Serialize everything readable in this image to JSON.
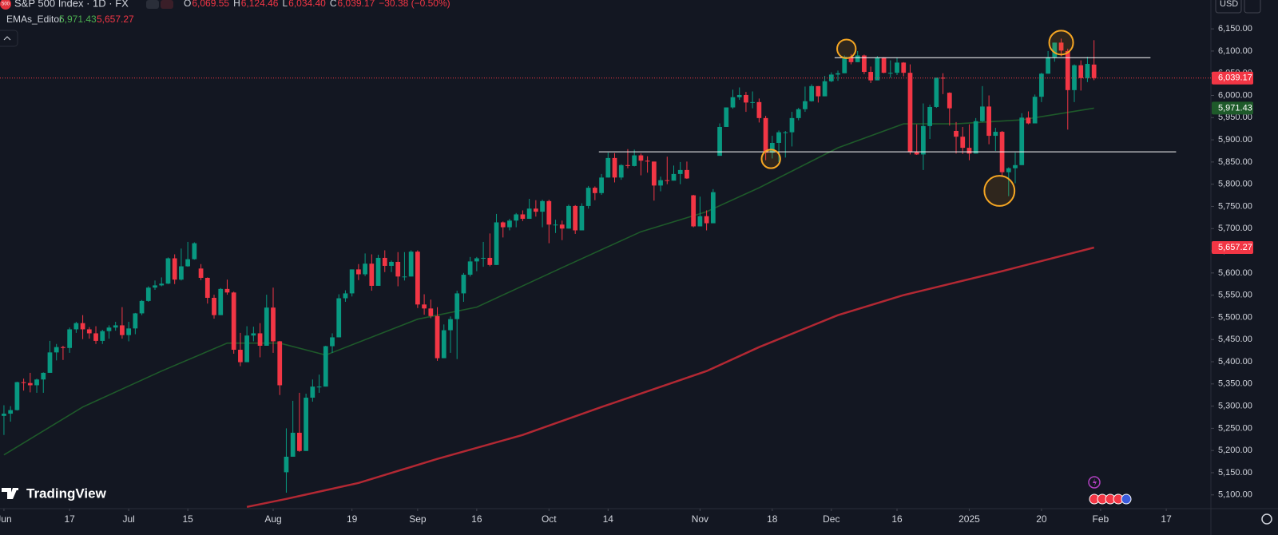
{
  "header": {
    "title": "S&P 500 Index · 1D · FX",
    "logo": "500",
    "ohlc": [
      {
        "key": "O",
        "value": "6,069.55"
      },
      {
        "key": "H",
        "value": "6,124.46"
      },
      {
        "key": "L",
        "value": "6,034.40"
      },
      {
        "key": "C",
        "value": "6,039.17"
      }
    ],
    "change": "−30.38 (−0.50%)",
    "indicator": {
      "name": "EMAs_Editor",
      "values": [
        "5,971.43",
        "5,657.27"
      ]
    },
    "currency": "USD",
    "branding": "TradingView"
  },
  "chart_data": {
    "type": "candlestick",
    "up_color": "#089981",
    "down_color": "#f23645",
    "grid": false,
    "xlim": [
      -0.6,
      183.8
    ],
    "ylim": [
      5069,
      6215
    ],
    "xticks": [
      {
        "value": 0,
        "label": "Jun"
      },
      {
        "value": 10,
        "label": "17"
      },
      {
        "value": 19,
        "label": "Jul"
      },
      {
        "value": 28,
        "label": "15"
      },
      {
        "value": 41,
        "label": "Aug"
      },
      {
        "value": 53,
        "label": "19"
      },
      {
        "value": 63,
        "label": "Sep"
      },
      {
        "value": 72,
        "label": "16"
      },
      {
        "value": 83,
        "label": "Oct"
      },
      {
        "value": 92,
        "label": "14"
      },
      {
        "value": 106,
        "label": "Nov"
      },
      {
        "value": 117,
        "label": "18"
      },
      {
        "value": 126,
        "label": "Dec"
      },
      {
        "value": 136,
        "label": "16"
      },
      {
        "value": 147,
        "label": "2025"
      },
      {
        "value": 158,
        "label": "20"
      },
      {
        "value": 167,
        "label": "Feb"
      },
      {
        "value": 177,
        "label": "17"
      }
    ],
    "yticks": [
      {
        "value": 6150,
        "label": "6,150.00"
      },
      {
        "value": 6100,
        "label": "6,100.00"
      },
      {
        "value": 6050,
        "label": "6,050.00"
      },
      {
        "value": 6000,
        "label": "6,000.00"
      },
      {
        "value": 5950,
        "label": "5,950.00"
      },
      {
        "value": 5900,
        "label": "5,900.00"
      },
      {
        "value": 5850,
        "label": "5,850.00"
      },
      {
        "value": 5800,
        "label": "5,800.00"
      },
      {
        "value": 5750,
        "label": "5,750.00"
      },
      {
        "value": 5700,
        "label": "5,700.00"
      },
      {
        "value": 5650,
        "label": "5,650.00"
      },
      {
        "value": 5600,
        "label": "5,600.00"
      },
      {
        "value": 5550,
        "label": "5,550.00"
      },
      {
        "value": 5500,
        "label": "5,500.00"
      },
      {
        "value": 5450,
        "label": "5,450.00"
      },
      {
        "value": 5400,
        "label": "5,400.00"
      },
      {
        "value": 5350,
        "label": "5,350.00"
      },
      {
        "value": 5300,
        "label": "5,300.00"
      },
      {
        "value": 5250,
        "label": "5,250.00"
      },
      {
        "value": 5200,
        "label": "5,200.00"
      },
      {
        "value": 5150,
        "label": "5,150.00"
      },
      {
        "value": 5100,
        "label": "5,100.00"
      }
    ],
    "candles": [
      [
        5278,
        5302,
        5235,
        5283
      ],
      [
        5283,
        5300,
        5265,
        5291
      ],
      [
        5291,
        5355,
        5290,
        5354
      ],
      [
        5354,
        5362,
        5335,
        5352
      ],
      [
        5352,
        5375,
        5331,
        5347
      ],
      [
        5347,
        5362,
        5330,
        5360
      ],
      [
        5360,
        5376,
        5330,
        5375
      ],
      [
        5375,
        5447,
        5375,
        5421
      ],
      [
        5421,
        5440,
        5403,
        5433
      ],
      [
        5433,
        5436,
        5404,
        5431
      ],
      [
        5431,
        5477,
        5420,
        5473
      ],
      [
        5473,
        5490,
        5465,
        5487
      ],
      [
        5487,
        5505,
        5451,
        5473
      ],
      [
        5473,
        5478,
        5452,
        5464
      ],
      [
        5464,
        5480,
        5440,
        5447
      ],
      [
        5447,
        5472,
        5440,
        5469
      ],
      [
        5469,
        5482,
        5452,
        5477
      ],
      [
        5477,
        5490,
        5470,
        5482
      ],
      [
        5482,
        5523,
        5452,
        5460
      ],
      [
        5460,
        5490,
        5446,
        5475
      ],
      [
        5475,
        5510,
        5462,
        5509
      ],
      [
        5509,
        5539,
        5505,
        5537
      ],
      [
        5537,
        5570,
        5535,
        5567
      ],
      [
        5567,
        5583,
        5562,
        5572
      ],
      [
        5572,
        5590,
        5570,
        5576
      ],
      [
        5576,
        5635,
        5575,
        5633
      ],
      [
        5633,
        5642,
        5575,
        5585
      ],
      [
        5585,
        5655,
        5583,
        5615
      ],
      [
        5615,
        5670,
        5614,
        5631
      ],
      [
        5631,
        5669,
        5630,
        5667
      ],
      [
        5610,
        5620,
        5584,
        5589
      ],
      [
        5589,
        5590,
        5531,
        5544
      ],
      [
        5544,
        5551,
        5497,
        5505
      ],
      [
        5505,
        5566,
        5505,
        5564
      ],
      [
        5564,
        5585,
        5551,
        5556
      ],
      [
        5556,
        5558,
        5418,
        5427
      ],
      [
        5427,
        5465,
        5390,
        5399
      ],
      [
        5399,
        5480,
        5399,
        5459
      ],
      [
        5459,
        5479,
        5446,
        5464
      ],
      [
        5464,
        5487,
        5410,
        5436
      ],
      [
        5436,
        5551,
        5436,
        5522
      ],
      [
        5522,
        5567,
        5420,
        5446
      ],
      [
        5446,
        5447,
        5325,
        5347
      ],
      [
        5151,
        5250,
        5105,
        5186
      ],
      [
        5186,
        5312,
        5186,
        5240
      ],
      [
        5240,
        5330,
        5197,
        5199
      ],
      [
        5199,
        5328,
        5199,
        5319
      ],
      [
        5319,
        5360,
        5310,
        5344
      ],
      [
        5344,
        5371,
        5330,
        5344
      ],
      [
        5344,
        5436,
        5344,
        5435
      ],
      [
        5435,
        5464,
        5420,
        5455
      ],
      [
        5455,
        5552,
        5455,
        5543
      ],
      [
        5543,
        5561,
        5535,
        5554
      ],
      [
        5554,
        5608,
        5547,
        5608
      ],
      [
        5608,
        5620,
        5584,
        5597
      ],
      [
        5597,
        5644,
        5593,
        5621
      ],
      [
        5621,
        5642,
        5560,
        5571
      ],
      [
        5571,
        5641,
        5571,
        5634
      ],
      [
        5634,
        5651,
        5602,
        5616
      ],
      [
        5616,
        5628,
        5602,
        5625
      ],
      [
        5625,
        5647,
        5570,
        5592
      ],
      [
        5592,
        5647,
        5583,
        5592
      ],
      [
        5592,
        5651,
        5592,
        5648
      ],
      [
        5648,
        5651,
        5521,
        5529
      ],
      [
        5529,
        5552,
        5506,
        5520
      ],
      [
        5520,
        5540,
        5498,
        5503
      ],
      [
        5503,
        5523,
        5402,
        5408
      ],
      [
        5408,
        5484,
        5408,
        5471
      ],
      [
        5471,
        5502,
        5420,
        5496
      ],
      [
        5496,
        5560,
        5406,
        5554
      ],
      [
        5554,
        5600,
        5535,
        5596
      ],
      [
        5596,
        5636,
        5592,
        5626
      ],
      [
        5626,
        5636,
        5604,
        5633
      ],
      [
        5633,
        5670,
        5614,
        5634
      ],
      [
        5634,
        5689,
        5615,
        5618
      ],
      [
        5618,
        5733,
        5618,
        5714
      ],
      [
        5714,
        5716,
        5680,
        5703
      ],
      [
        5703,
        5722,
        5696,
        5718
      ],
      [
        5718,
        5735,
        5703,
        5732
      ],
      [
        5732,
        5741,
        5717,
        5722
      ],
      [
        5722,
        5767,
        5722,
        5745
      ],
      [
        5745,
        5764,
        5727,
        5738
      ],
      [
        5738,
        5765,
        5703,
        5762
      ],
      [
        5762,
        5765,
        5667,
        5709
      ],
      [
        5709,
        5720,
        5690,
        5709
      ],
      [
        5709,
        5718,
        5674,
        5700
      ],
      [
        5700,
        5754,
        5700,
        5751
      ],
      [
        5751,
        5753,
        5688,
        5696
      ],
      [
        5696,
        5757,
        5696,
        5751
      ],
      [
        5751,
        5796,
        5745,
        5792
      ],
      [
        5792,
        5795,
        5764,
        5780
      ],
      [
        5780,
        5823,
        5776,
        5815
      ],
      [
        5815,
        5871,
        5815,
        5859
      ],
      [
        5859,
        5870,
        5804,
        5815
      ],
      [
        5815,
        5845,
        5810,
        5843
      ],
      [
        5843,
        5879,
        5836,
        5841
      ],
      [
        5841,
        5878,
        5840,
        5865
      ],
      [
        5865,
        5869,
        5820,
        5853
      ],
      [
        5853,
        5863,
        5826,
        5851
      ],
      [
        5851,
        5851,
        5763,
        5797
      ],
      [
        5797,
        5817,
        5784,
        5809
      ],
      [
        5809,
        5862,
        5800,
        5808
      ],
      [
        5808,
        5842,
        5808,
        5823
      ],
      [
        5823,
        5850,
        5800,
        5832
      ],
      [
        5832,
        5851,
        5812,
        5813
      ],
      [
        5775,
        5776,
        5703,
        5705
      ],
      [
        5705,
        5772,
        5705,
        5728
      ],
      [
        5728,
        5741,
        5696,
        5712
      ],
      [
        5712,
        5789,
        5712,
        5782
      ],
      [
        5864,
        5937,
        5864,
        5929
      ],
      [
        5929,
        5973,
        5929,
        5973
      ],
      [
        5973,
        6013,
        5970,
        5996
      ],
      [
        5996,
        6018,
        5990,
        6001
      ],
      [
        6001,
        6008,
        5963,
        5984
      ],
      [
        5984,
        6009,
        5971,
        5985
      ],
      [
        5985,
        5993,
        5939,
        5949
      ],
      [
        5949,
        5954,
        5854,
        5871
      ],
      [
        5871,
        5909,
        5858,
        5893
      ],
      [
        5893,
        5921,
        5850,
        5917
      ],
      [
        5917,
        5920,
        5860,
        5917
      ],
      [
        5917,
        5963,
        5885,
        5949
      ],
      [
        5949,
        5972,
        5944,
        5969
      ],
      [
        5969,
        6020,
        5963,
        5987
      ],
      [
        5987,
        6025,
        5986,
        6021
      ],
      [
        6021,
        6021,
        5984,
        5998
      ],
      [
        5998,
        6044,
        5998,
        6032
      ],
      [
        6032,
        6052,
        6030,
        6047
      ],
      [
        6047,
        6056,
        6033,
        6050
      ],
      [
        6050,
        6090,
        6050,
        6087
      ],
      [
        6087,
        6093,
        6070,
        6075
      ],
      [
        6075,
        6100,
        6075,
        6090
      ],
      [
        6090,
        6092,
        6048,
        6053
      ],
      [
        6053,
        6065,
        6028,
        6034
      ],
      [
        6034,
        6089,
        6034,
        6085
      ],
      [
        6085,
        6086,
        6050,
        6051
      ],
      [
        6051,
        6079,
        6040,
        6051
      ],
      [
        6051,
        6085,
        6046,
        6074
      ],
      [
        6074,
        6075,
        6043,
        6051
      ],
      [
        6051,
        6070,
        5867,
        5872
      ],
      [
        5872,
        5935,
        5866,
        5867
      ],
      [
        5867,
        5982,
        5832,
        5931
      ],
      [
        5931,
        5979,
        5902,
        5974
      ],
      [
        5974,
        6040,
        5972,
        6040
      ],
      [
        6040,
        6050,
        6003,
        6038
      ],
      [
        6006,
        6007,
        5932,
        5971
      ],
      [
        5920,
        5940,
        5869,
        5907
      ],
      [
        5907,
        5929,
        5868,
        5882
      ],
      [
        5882,
        5935,
        5854,
        5869
      ],
      [
        5869,
        5949,
        5869,
        5942
      ],
      [
        5942,
        6021,
        5940,
        5975
      ],
      [
        5975,
        6000,
        5890,
        5909
      ],
      [
        5909,
        5927,
        5875,
        5918
      ],
      [
        5918,
        5920,
        5820,
        5827
      ],
      [
        5827,
        5838,
        5773,
        5836
      ],
      [
        5836,
        5871,
        5802,
        5843
      ],
      [
        5843,
        5960,
        5843,
        5950
      ],
      [
        5950,
        5964,
        5935,
        5937
      ],
      [
        5937,
        6002,
        5937,
        5997
      ],
      [
        5997,
        6051,
        5985,
        6049
      ],
      [
        6049,
        6100,
        6049,
        6086
      ],
      [
        6086,
        6119,
        6076,
        6119
      ],
      [
        6119,
        6128,
        6088,
        6101
      ],
      [
        6100,
        6105,
        5923,
        6012
      ],
      [
        6012,
        6070,
        5985,
        6068
      ],
      [
        6068,
        6079,
        6011,
        6039
      ],
      [
        6039,
        6087,
        6030,
        6071
      ],
      [
        6069.55,
        6124.46,
        6034.4,
        6039.17
      ]
    ],
    "series": [
      {
        "color": "#1e5a2a",
        "x": [
          0,
          12,
          24,
          34,
          42,
          49,
          63,
          72,
          85,
          97,
          107,
          115,
          127,
          137,
          145,
          155,
          166
        ],
        "values": [
          5190,
          5298,
          5379,
          5442,
          5442,
          5415,
          5496,
          5523,
          5612,
          5693,
          5738,
          5792,
          5882,
          5936,
          5936,
          5945,
          5971.43
        ]
      },
      {
        "color": "#b22833",
        "x": [
          37,
          43,
          54,
          66,
          79,
          91,
          107,
          115,
          127,
          137,
          152,
          166
        ],
        "values": [
          5073,
          5091,
          5127,
          5181,
          5235,
          5298,
          5379,
          5433,
          5505,
          5550,
          5604,
          5657.27
        ]
      }
    ],
    "price_badges": [
      {
        "value": 6039.17,
        "label": "6,039.17",
        "color": "#f23645"
      },
      {
        "value": 5971.43,
        "label": "5,971.43",
        "color": "#1e5a2a"
      },
      {
        "value": 5657.27,
        "label": "5,657.27",
        "color": "#f23645"
      }
    ],
    "levels": [
      {
        "price": 6085,
        "from": 126.5,
        "to": 174.6
      },
      {
        "price": 5873,
        "from": 90.6,
        "to": 178.5
      }
    ],
    "highlights": [
      {
        "x": 128.3,
        "price": 6105,
        "r": 21
      },
      {
        "x": 116.8,
        "price": 5857,
        "r": 21
      },
      {
        "x": 151.6,
        "price": 5785,
        "r": 34
      },
      {
        "x": 161,
        "price": 6119,
        "r": 27
      }
    ]
  }
}
